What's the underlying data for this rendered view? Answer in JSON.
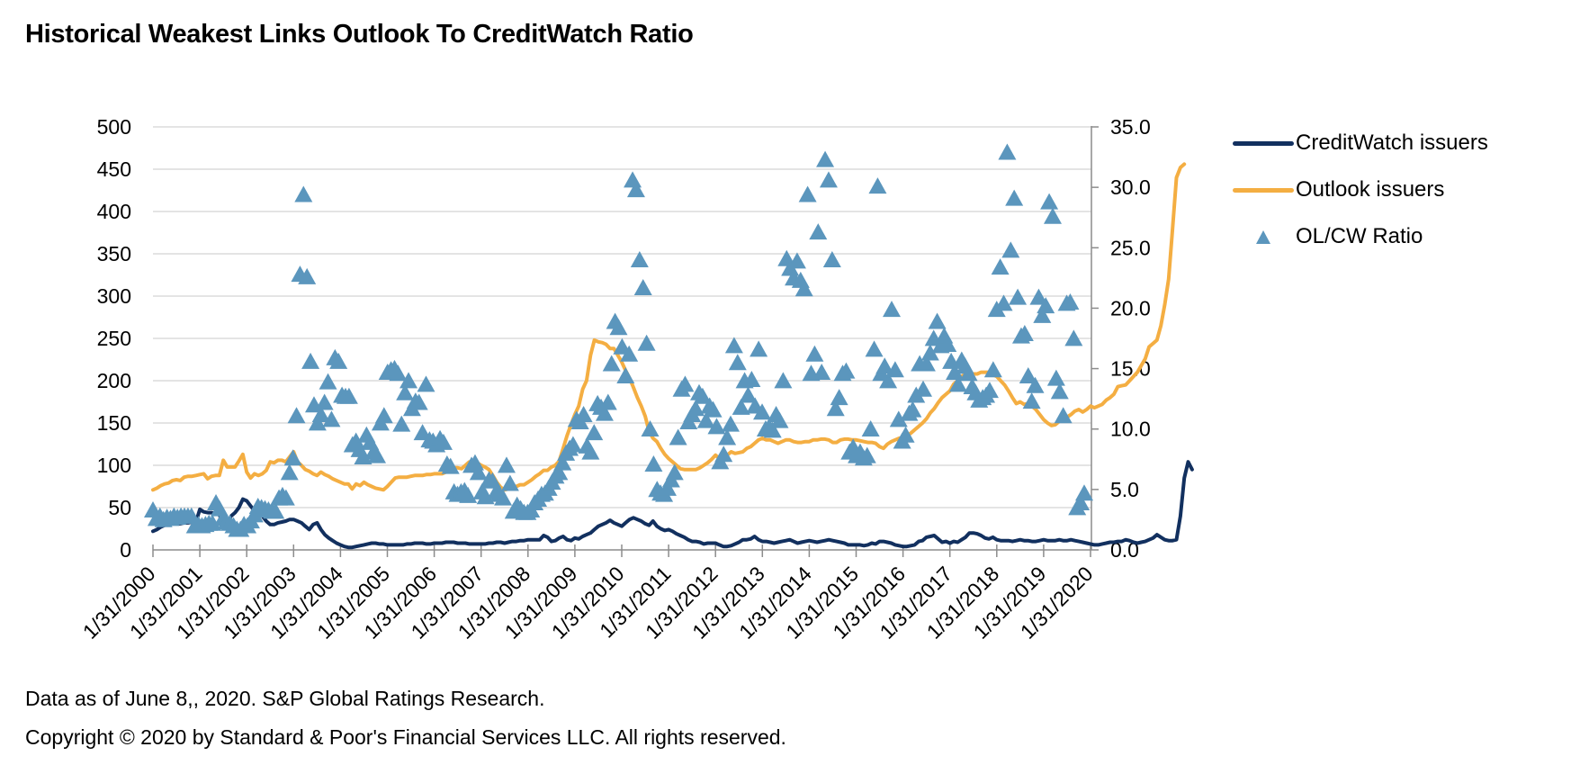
{
  "page": {
    "title": "Historical Weakest Links Outlook To CreditWatch Ratio",
    "footer_line1": "Data as of June 8,, 2020. S&P Global Ratings Research.",
    "footer_line2": "Copyright © 2020 by Standard & Poor's Financial Services LLC. All rights reserved."
  },
  "colors": {
    "creditwatch": "#12305f",
    "outlook": "#f4ae42",
    "ratio": "#5b96bd",
    "grid": "#d4d4d4",
    "axis": "#8c8c8c"
  },
  "legend": {
    "items": [
      {
        "label": "CreditWatch issuers",
        "kind": "line",
        "series": "creditwatch"
      },
      {
        "label": "Outlook issuers",
        "kind": "line",
        "series": "outlook"
      },
      {
        "label": "OL/CW Ratio",
        "kind": "marker",
        "series": "ratio"
      }
    ]
  },
  "chart_data": {
    "type": "line",
    "title": "Historical Weakest Links Outlook To CreditWatch Ratio",
    "xlabel": "",
    "ylabel": "",
    "y2label": "",
    "legend_position": "right",
    "grid": true,
    "x_start": "2000-01",
    "x_frequency": "monthly",
    "x_tick_labels": [
      "1/31/2000",
      "1/31/2001",
      "1/31/2002",
      "1/31/2003",
      "1/31/2004",
      "1/31/2005",
      "1/31/2006",
      "1/31/2007",
      "1/31/2008",
      "1/31/2009",
      "1/31/2010",
      "1/31/2011",
      "1/31/2012",
      "1/31/2013",
      "1/31/2014",
      "1/31/2015",
      "1/31/2016",
      "1/31/2017",
      "1/31/2018",
      "1/31/2019",
      "1/31/2020"
    ],
    "ylim": [
      0,
      500
    ],
    "y_ticks": [
      "0",
      "50",
      "100",
      "150",
      "200",
      "250",
      "300",
      "350",
      "400",
      "450",
      "500"
    ],
    "y2lim": [
      0,
      35
    ],
    "y2_ticks": [
      "0.0",
      "5.0",
      "10.0",
      "15.0",
      "20.0",
      "25.0",
      "30.0",
      "35.0"
    ],
    "series": [
      {
        "name": "CreditWatch issuers",
        "axis": "left",
        "type": "line",
        "values": [
          22,
          24,
          27,
          29,
          30,
          31,
          31,
          31,
          32,
          32,
          33,
          33,
          48,
          45,
          44,
          44,
          43,
          42,
          28,
          30,
          40,
          44,
          50,
          60,
          58,
          52,
          46,
          46,
          40,
          34,
          30,
          30,
          32,
          33,
          34,
          36,
          36,
          34,
          32,
          28,
          24,
          30,
          32,
          24,
          18,
          14,
          11,
          8,
          6,
          4,
          3,
          3,
          4,
          5,
          6,
          7,
          8,
          8,
          7,
          7,
          6,
          6,
          6,
          6,
          6,
          7,
          7,
          8,
          8,
          8,
          7,
          7,
          8,
          8,
          8,
          9,
          9,
          9,
          8,
          8,
          8,
          7,
          7,
          7,
          7,
          7,
          8,
          8,
          9,
          9,
          8,
          9,
          10,
          10,
          11,
          11,
          12,
          12,
          12,
          12,
          17,
          15,
          10,
          11,
          14,
          16,
          12,
          11,
          14,
          13,
          16,
          18,
          20,
          24,
          28,
          30,
          32,
          35,
          32,
          30,
          28,
          32,
          36,
          38,
          36,
          34,
          31,
          29,
          34,
          28,
          25,
          23,
          24,
          22,
          19,
          17,
          15,
          12,
          10,
          10,
          9,
          7,
          8,
          8,
          8,
          6,
          4,
          4,
          5,
          7,
          9,
          12,
          12,
          13,
          16,
          12,
          10,
          10,
          9,
          8,
          9,
          10,
          11,
          12,
          10,
          8,
          9,
          10,
          11,
          10,
          9,
          10,
          11,
          12,
          11,
          10,
          9,
          8,
          6,
          6,
          6,
          6,
          5,
          6,
          8,
          7,
          10,
          10,
          9,
          8,
          6,
          5,
          4,
          4,
          5,
          6,
          10,
          11,
          15,
          16,
          17,
          13,
          9,
          10,
          8,
          10,
          9,
          12,
          15,
          20,
          20,
          19,
          17,
          14,
          13,
          15,
          12,
          11,
          11,
          11,
          10,
          11,
          12,
          11,
          11,
          10,
          10,
          11,
          12,
          11,
          11,
          11,
          12,
          11,
          11,
          12,
          11,
          10,
          9,
          8,
          7,
          6,
          6,
          7,
          8,
          9,
          9,
          10,
          10,
          12,
          11,
          9,
          8,
          9,
          10,
          12,
          14,
          18,
          15,
          12,
          11,
          11,
          12,
          40,
          85,
          104,
          95
        ]
      },
      {
        "name": "Outlook issuers",
        "axis": "left",
        "type": "line",
        "values": [
          71,
          73,
          76,
          78,
          79,
          82,
          83,
          82,
          86,
          87,
          87,
          88,
          89,
          90,
          84,
          87,
          88,
          88,
          106,
          98,
          98,
          98,
          105,
          113,
          92,
          85,
          90,
          88,
          90,
          94,
          104,
          103,
          106,
          106,
          104,
          110,
          116,
          104,
          100,
          95,
          93,
          90,
          88,
          92,
          89,
          87,
          84,
          82,
          80,
          78,
          78,
          72,
          78,
          76,
          80,
          77,
          75,
          73,
          72,
          71,
          75,
          80,
          85,
          86,
          86,
          86,
          87,
          88,
          88,
          88,
          89,
          89,
          90,
          90,
          90,
          92,
          95,
          97,
          97,
          96,
          100,
          104,
          104,
          103,
          100,
          98,
          95,
          88,
          80,
          74,
          71,
          72,
          72,
          75,
          77,
          77,
          80,
          83,
          87,
          90,
          94,
          94,
          98,
          100,
          105,
          120,
          135,
          148,
          160,
          170,
          190,
          200,
          230,
          248,
          246,
          245,
          243,
          238,
          238,
          230,
          222,
          212,
          203,
          192,
          180,
          170,
          158,
          140,
          132,
          128,
          120,
          113,
          108,
          104,
          100,
          96,
          95,
          95,
          95,
          95,
          97,
          100,
          103,
          107,
          112,
          108,
          112,
          112,
          116,
          114,
          115,
          116,
          120,
          122,
          126,
          130,
          132,
          130,
          130,
          128,
          126,
          128,
          130,
          130,
          128,
          127,
          127,
          128,
          128,
          130,
          130,
          131,
          131,
          130,
          127,
          127,
          130,
          131,
          131,
          130,
          130,
          129,
          128,
          127,
          127,
          126,
          122,
          120,
          125,
          128,
          130,
          132,
          133,
          135,
          138,
          142,
          146,
          150,
          155,
          162,
          167,
          174,
          180,
          184,
          188,
          196,
          200,
          205,
          208,
          208,
          208,
          208,
          210,
          210,
          210,
          207,
          205,
          200,
          195,
          188,
          180,
          173,
          175,
          172,
          173,
          170,
          166,
          160,
          154,
          150,
          147,
          148,
          152,
          158,
          157,
          160,
          164,
          166,
          163,
          166,
          170,
          168,
          170,
          172,
          177,
          180,
          184,
          193,
          194,
          195,
          200,
          205,
          210,
          218,
          226,
          240,
          244,
          248,
          265,
          290,
          320,
          380,
          440,
          452,
          456
        ]
      },
      {
        "name": "OL/CW Ratio",
        "axis": "right",
        "type": "scatter",
        "marker": "triangle",
        "values": [
          3.2,
          2.5,
          2.7,
          2.4,
          2.6,
          2.5,
          2.7,
          2.6,
          2.7,
          2.7,
          2.7,
          2.7,
          1.9,
          2.0,
          1.9,
          2.0,
          2.1,
          2.1,
          3.8,
          3.3,
          2.5,
          2.2,
          2.1,
          1.9,
          1.6,
          1.6,
          2.0,
          1.9,
          2.3,
          2.8,
          3.5,
          3.4,
          3.3,
          3.2,
          3.1,
          3.1,
          4.2,
          4.4,
          4.2,
          6.3,
          7.5,
          11.0,
          22.7,
          29.3,
          22.5,
          15.5,
          11.9,
          10.4,
          11.1,
          12.1,
          13.8,
          10.7,
          15.8,
          15.5,
          12.7,
          12.6,
          12.6,
          8.6,
          8.9,
          8.2,
          7.6,
          9.4,
          8.8,
          8.0,
          7.7,
          10.4,
          11.0,
          14.6,
          14.8,
          14.9,
          14.5,
          10.3,
          12.9,
          13.9,
          11.6,
          12.2,
          12.1,
          9.6,
          13.6,
          9.0,
          8.9,
          8.6,
          9.1,
          8.8,
          7.0,
          6.8,
          4.7,
          4.5,
          4.7,
          4.8,
          4.4,
          6.9,
          7.1,
          6.3,
          4.7,
          4.3,
          5.7,
          5.6,
          4.7,
          4.5,
          4.2,
          6.9,
          5.4,
          3.1,
          3.6,
          3.3,
          3.0,
          3.0,
          3.2,
          3.8,
          4.1,
          4.5,
          4.6,
          5.0,
          5.5,
          6.0,
          6.3,
          7.1,
          7.9,
          8.3,
          8.6,
          10.7,
          10.5,
          11.1,
          8.5,
          8.0,
          9.6,
          12.0,
          11.7,
          11.2,
          12.1,
          15.3,
          18.8,
          18.3,
          16.7,
          14.3,
          16.1,
          30.5,
          29.7,
          23.9,
          21.6,
          17.0,
          9.9,
          7.0,
          4.9,
          4.6,
          4.5,
          5.0,
          5.7,
          6.3,
          9.2,
          13.2,
          13.6,
          10.5,
          11.1,
          11.6,
          12.9,
          12.6,
          10.6,
          11.8,
          11.5,
          10.1,
          7.2,
          7.8,
          9.2,
          10.3,
          16.8,
          15.4,
          11.7,
          13.9,
          12.7,
          14.0,
          11.8,
          16.5,
          11.3,
          9.9,
          10.1,
          9.8,
          11.1,
          10.6,
          13.9,
          24.0,
          23.2,
          22.4,
          23.8,
          22.2,
          21.5,
          29.3,
          14.5,
          16.1,
          26.2,
          14.6,
          32.2,
          30.5,
          23.9,
          11.6,
          12.5,
          14.5,
          14.7,
          8.0,
          8.4,
          7.7,
          8.0,
          7.5,
          7.7,
          9.9,
          16.5,
          30.0,
          14.5,
          15.1,
          13.9,
          19.8,
          14.8,
          10.7,
          8.9,
          9.4,
          11.2,
          11.5,
          12.7,
          15.3,
          13.2,
          15.3,
          16.2,
          17.4,
          18.8,
          16.8,
          17.6,
          16.9,
          15.5,
          14.6,
          13.6,
          15.6,
          15.1,
          14.5,
          13.4,
          12.9,
          12.3,
          12.5,
          12.7,
          13.1,
          14.8,
          19.8,
          23.3,
          20.3,
          32.8,
          24.7,
          29.0,
          20.8,
          17.6,
          17.8,
          14.3,
          12.2,
          13.5,
          20.8,
          19.3,
          20.1,
          28.7,
          27.5,
          14.1,
          13.0,
          11.0,
          20.3,
          20.4,
          17.4,
          3.4,
          3.8,
          4.6
        ]
      }
    ]
  }
}
